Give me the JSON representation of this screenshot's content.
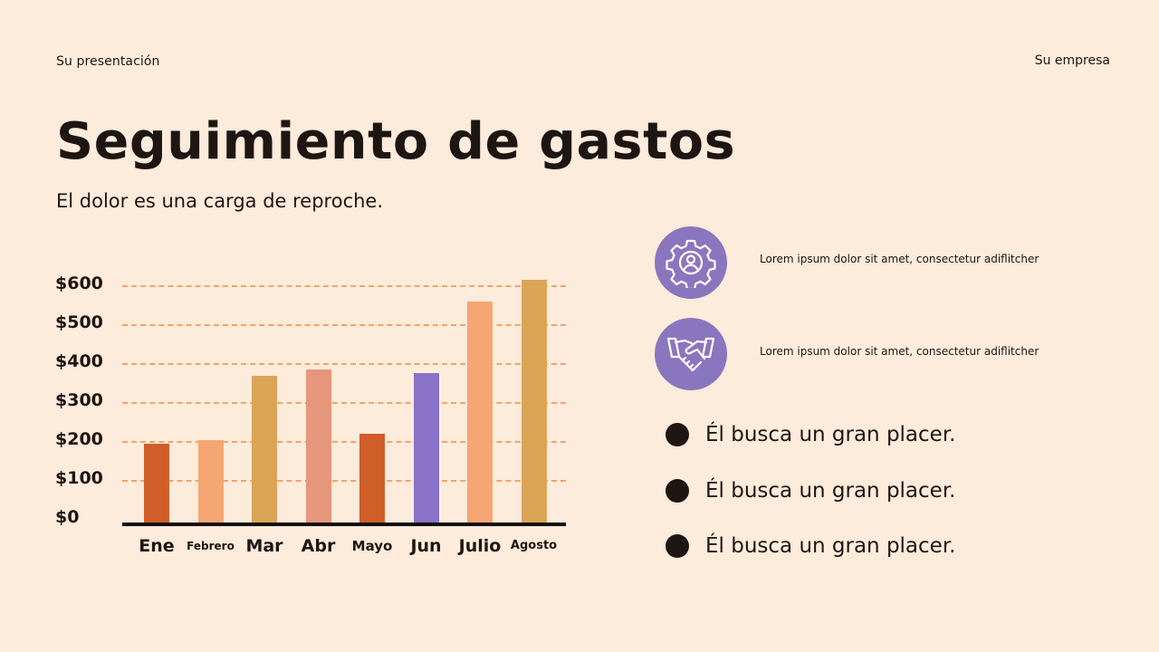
{
  "header": {
    "presentation_label": "Su presentación",
    "company_label": "Su empresa"
  },
  "slide": {
    "title": "Seguimiento de gastos",
    "subtitle": "El dolor es una carga de reproche."
  },
  "chart_data": {
    "type": "bar",
    "title": "",
    "xlabel": "",
    "ylabel": "",
    "categories": [
      "Ene",
      "Febrero",
      "Mar",
      "Abr",
      "Mayo",
      "Jun",
      "Julio",
      "Agosto"
    ],
    "values": [
      205,
      215,
      380,
      395,
      230,
      385,
      570,
      625
    ],
    "bar_colors": [
      "#d05e28",
      "#f5a672",
      "#dba556",
      "#e6967a",
      "#d05e28",
      "#8a72c8",
      "#f5a672",
      "#dba556"
    ],
    "y_ticks": [
      "$0",
      "$100",
      "$200",
      "$300",
      "$400",
      "$500",
      "$600"
    ],
    "y_tick_values": [
      0,
      100,
      200,
      300,
      400,
      500,
      600
    ],
    "ylim": [
      0,
      650
    ],
    "grid": true,
    "grid_style": "dashed",
    "grid_color": "#f0a36b",
    "legend": null
  },
  "features": [
    {
      "icon": "gear-user-icon",
      "text": "Lorem ipsum dolor sit amet, consectetur adiflitcher"
    },
    {
      "icon": "handshake-icon",
      "text": "Lorem ipsum dolor sit amet, consectetur adiflitcher"
    }
  ],
  "bullets": [
    "Él busca un gran placer.",
    "Él busca un gran placer.",
    "Él busca un gran placer."
  ],
  "colors": {
    "background": "#fdebdb",
    "text": "#1e1612",
    "accent_purple": "#8a76be"
  }
}
